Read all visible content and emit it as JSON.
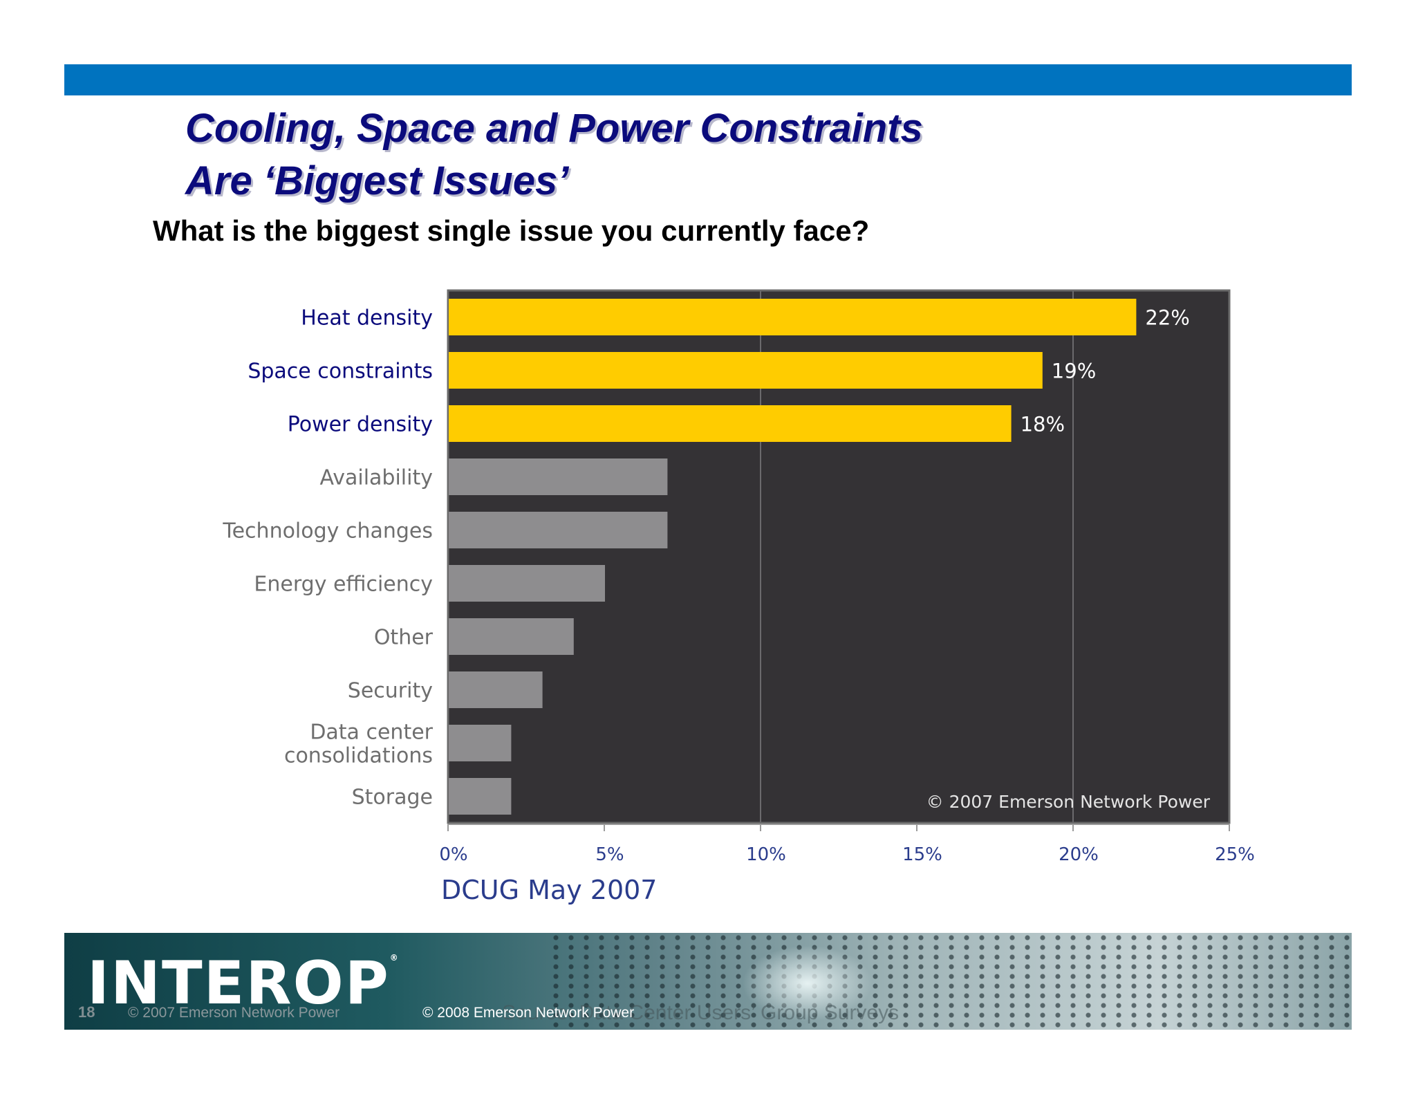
{
  "slide": {
    "title_line1": "Cooling, Space and Power Constraints",
    "title_line2": "Are ‘Biggest Issues’",
    "question": "What is the biggest single issue you currently face?"
  },
  "colors": {
    "top_bar": "#0073bf",
    "title": "#0b0b7c",
    "highlight_bar": "#ffcc00",
    "other_bar": "#8e8d8f",
    "plot_background": "#343235"
  },
  "chart_data": {
    "type": "bar",
    "orientation": "horizontal",
    "categories": [
      "Heat density",
      "Space constraints",
      "Power density",
      "Availability",
      "Technology changes",
      "Energy efficiency",
      "Other",
      "Security",
      "Data center consolidations",
      "Storage"
    ],
    "category_lines": [
      [
        "Heat density"
      ],
      [
        "Space constraints"
      ],
      [
        "Power density"
      ],
      [
        "Availability"
      ],
      [
        "Technology changes"
      ],
      [
        "Energy efficiency"
      ],
      [
        "Other"
      ],
      [
        "Security"
      ],
      [
        "Data center",
        "consolidations"
      ],
      [
        "Storage"
      ]
    ],
    "values": [
      22,
      19,
      18,
      7,
      7,
      5,
      4,
      3,
      2,
      2
    ],
    "data_labels": [
      "22%",
      "19%",
      "18%",
      "",
      "",
      "",
      "",
      "",
      "",
      ""
    ],
    "highlighted": [
      true,
      true,
      true,
      false,
      false,
      false,
      false,
      false,
      false,
      false
    ],
    "x_ticks": [
      "0%",
      "5%",
      "10%",
      "15%",
      "20%",
      "25%"
    ],
    "x_tick_values": [
      0,
      5,
      10,
      15,
      20,
      25
    ],
    "xlim": [
      0,
      25
    ],
    "gridlines_at": [
      10,
      20
    ],
    "copyright": "© 2007 Emerson Network Power",
    "caption": "DCUG May 2007"
  },
  "footer": {
    "logo": "INTEROP",
    "page_number": "18",
    "copyright_left": "© 2007 Emerson Network Power",
    "copyright_center": "© 2008 Emerson Network Power",
    "source": "Source: Data Center Users’ Group Surveys"
  }
}
